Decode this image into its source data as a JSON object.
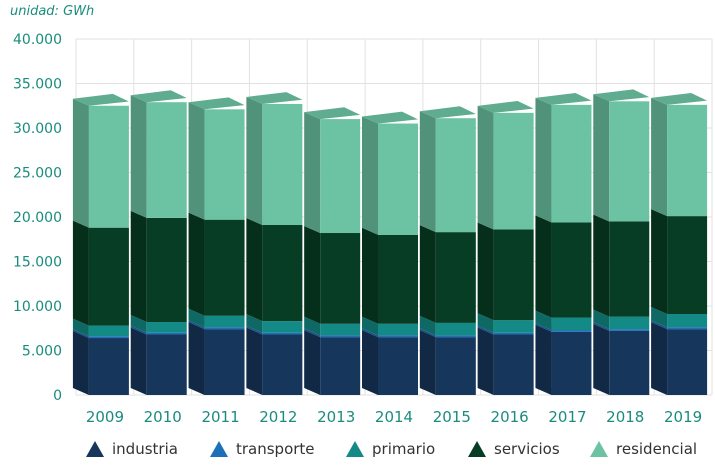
{
  "unit_label": "unidad: GWh",
  "colors": {
    "axis_text": "#1a8c7e",
    "grid": "#e2e2e2",
    "series": {
      "industria": "#16365c",
      "transporte": "#1d6fb8",
      "primario": "#138a85",
      "servicios": "#063d24",
      "residencial": "#6cc3a4"
    }
  },
  "chart_data": {
    "type": "bar",
    "stacked": true,
    "style": "3d",
    "title": "",
    "xlabel": "",
    "ylabel": "unidad: GWh",
    "ylim": [
      0,
      40000
    ],
    "yticks": [
      "0",
      "5.000",
      "10.000",
      "15.000",
      "20.000",
      "25.000",
      "30.000",
      "35.000",
      "40.000"
    ],
    "ytick_values": [
      0,
      5000,
      10000,
      15000,
      20000,
      25000,
      30000,
      35000,
      40000
    ],
    "grid": true,
    "legend_position": "bottom",
    "categories": [
      "2009",
      "2010",
      "2011",
      "2012",
      "2013",
      "2014",
      "2015",
      "2016",
      "2017",
      "2018",
      "2019"
    ],
    "series": [
      {
        "name": "industria",
        "values": [
          6400,
          6800,
          7400,
          6800,
          6500,
          6500,
          6500,
          6800,
          7100,
          7200,
          7400
        ]
      },
      {
        "name": "transporte",
        "values": [
          200,
          200,
          200,
          200,
          200,
          200,
          200,
          200,
          200,
          200,
          200
        ]
      },
      {
        "name": "primario",
        "values": [
          1200,
          1200,
          1300,
          1300,
          1300,
          1300,
          1400,
          1400,
          1400,
          1400,
          1500
        ]
      },
      {
        "name": "servicios",
        "values": [
          11000,
          11700,
          10800,
          10800,
          10200,
          10000,
          10200,
          10200,
          10700,
          10700,
          11000
        ]
      },
      {
        "name": "residencial",
        "values": [
          13700,
          13000,
          12400,
          13600,
          12800,
          12500,
          12800,
          13100,
          13200,
          13500,
          12500
        ]
      }
    ]
  },
  "legend": [
    {
      "label": "industria"
    },
    {
      "label": "transporte"
    },
    {
      "label": "primario"
    },
    {
      "label": "servicios"
    },
    {
      "label": "residencial"
    }
  ]
}
